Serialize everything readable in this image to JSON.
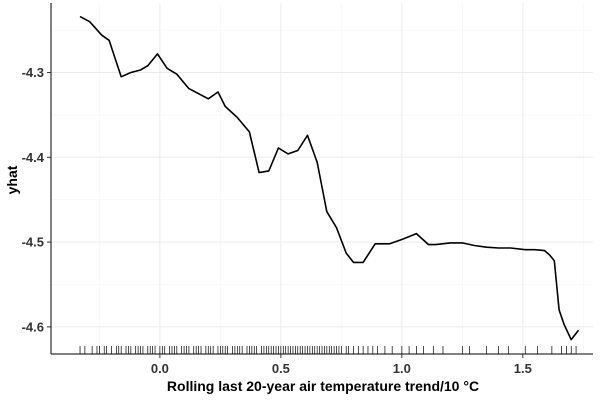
{
  "chart_data": {
    "type": "line",
    "title": "",
    "xlabel": "Rolling last 20-year air temperature trend/10 °C",
    "ylabel": "yhat",
    "xlim": [
      -0.45,
      1.79
    ],
    "ylim": [
      -4.632,
      -4.218
    ],
    "x_ticks": [
      0.0,
      0.5,
      1.0,
      1.5
    ],
    "x_tick_labels": [
      "0.0",
      "0.5",
      "1.0",
      "1.5"
    ],
    "y_ticks": [
      -4.3,
      -4.4,
      -4.5,
      -4.6
    ],
    "y_tick_labels": [
      "-4.3",
      "-4.4",
      "-4.5",
      "-4.6"
    ],
    "grid": true,
    "legend": "none",
    "line_color": "#000000",
    "series": [
      {
        "x": [
          -0.33,
          -0.29,
          -0.24,
          -0.21,
          -0.16,
          -0.12,
          -0.08,
          -0.05,
          -0.01,
          0.03,
          0.07,
          0.12,
          0.16,
          0.2,
          0.24,
          0.27,
          0.32,
          0.37,
          0.41,
          0.45,
          0.49,
          0.53,
          0.57,
          0.61,
          0.65,
          0.69,
          0.73,
          0.77,
          0.8,
          0.84,
          0.89,
          0.95,
          1.0,
          1.06,
          1.11,
          1.14,
          1.2,
          1.25,
          1.3,
          1.35,
          1.4,
          1.45,
          1.51,
          1.55,
          1.59,
          1.61,
          1.63,
          1.65,
          1.67,
          1.7,
          1.73
        ],
        "y": [
          -4.234,
          -4.24,
          -4.256,
          -4.262,
          -4.305,
          -4.3,
          -4.297,
          -4.292,
          -4.278,
          -4.295,
          -4.302,
          -4.319,
          -4.325,
          -4.331,
          -4.323,
          -4.34,
          -4.353,
          -4.37,
          -4.418,
          -4.416,
          -4.389,
          -4.396,
          -4.392,
          -4.374,
          -4.406,
          -4.464,
          -4.483,
          -4.513,
          -4.524,
          -4.524,
          -4.502,
          -4.502,
          -4.497,
          -4.49,
          -4.503,
          -4.503,
          -4.501,
          -4.501,
          -4.504,
          -4.506,
          -4.507,
          -4.507,
          -4.509,
          -4.509,
          -4.51,
          -4.515,
          -4.522,
          -4.58,
          -4.597,
          -4.615,
          -4.604
        ]
      }
    ],
    "rug": [
      -0.33,
      -0.31,
      -0.28,
      -0.26,
      -0.25,
      -0.23,
      -0.22,
      -0.2,
      -0.18,
      -0.17,
      -0.16,
      -0.14,
      -0.13,
      -0.12,
      -0.1,
      -0.09,
      -0.08,
      -0.07,
      -0.05,
      -0.04,
      -0.03,
      -0.02,
      0.0,
      0.01,
      0.02,
      0.04,
      0.05,
      0.06,
      0.07,
      0.09,
      0.1,
      0.11,
      0.12,
      0.14,
      0.15,
      0.16,
      0.17,
      0.19,
      0.2,
      0.21,
      0.22,
      0.24,
      0.25,
      0.26,
      0.27,
      0.28,
      0.3,
      0.31,
      0.32,
      0.33,
      0.34,
      0.36,
      0.37,
      0.38,
      0.39,
      0.4,
      0.42,
      0.43,
      0.44,
      0.45,
      0.46,
      0.47,
      0.48,
      0.49,
      0.5,
      0.51,
      0.52,
      0.53,
      0.54,
      0.55,
      0.56,
      0.57,
      0.58,
      0.59,
      0.6,
      0.61,
      0.62,
      0.63,
      0.64,
      0.65,
      0.66,
      0.67,
      0.68,
      0.69,
      0.7,
      0.71,
      0.72,
      0.73,
      0.74,
      0.75,
      0.77,
      0.78,
      0.8,
      0.82,
      0.84,
      0.86,
      0.88,
      0.9,
      0.93,
      0.96,
      1.0,
      1.03,
      1.06,
      1.09,
      1.13,
      1.17,
      1.25,
      1.28,
      1.35,
      1.4,
      1.44,
      1.51,
      1.56,
      1.62,
      1.66,
      1.68,
      1.7,
      1.72
    ]
  }
}
